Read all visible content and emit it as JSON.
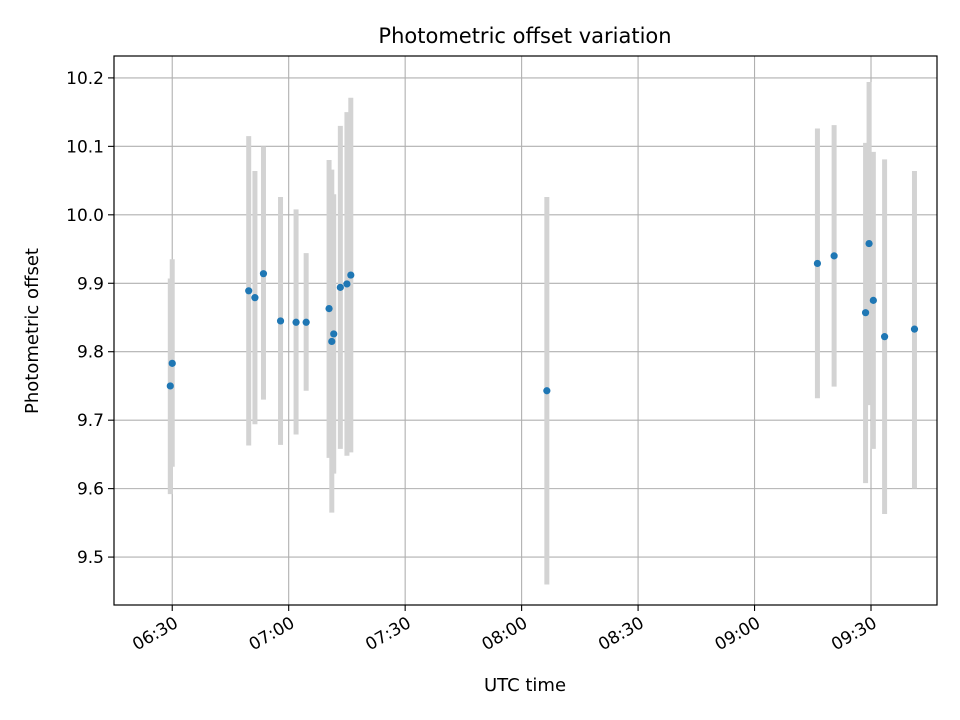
{
  "chart_data": {
    "type": "scatter",
    "title": "Photometric offset variation",
    "xlabel": "UTC time",
    "ylabel": "Photometric offset",
    "grid": true,
    "legend": "none",
    "x_unit": "minutes since 00:00 UTC",
    "xlim": [
      375,
      587
    ],
    "ylim": [
      9.43,
      10.232
    ],
    "x_ticks": [
      {
        "value": 390,
        "label": "06:30"
      },
      {
        "value": 420,
        "label": "07:00"
      },
      {
        "value": 450,
        "label": "07:30"
      },
      {
        "value": 480,
        "label": "08:00"
      },
      {
        "value": 510,
        "label": "08:30"
      },
      {
        "value": 540,
        "label": "09:00"
      },
      {
        "value": 570,
        "label": "09:30"
      }
    ],
    "y_ticks": [
      {
        "value": 9.5,
        "label": "9.5"
      },
      {
        "value": 9.6,
        "label": "9.6"
      },
      {
        "value": 9.7,
        "label": "9.7"
      },
      {
        "value": 9.8,
        "label": "9.8"
      },
      {
        "value": 9.9,
        "label": "9.9"
      },
      {
        "value": 10.0,
        "label": "10.0"
      },
      {
        "value": 10.1,
        "label": "10.1"
      },
      {
        "value": 10.2,
        "label": "10.2"
      }
    ],
    "colors": {
      "marker": "#1f77b4",
      "errorbar": "#d3d3d3",
      "grid": "#b0b0b0",
      "axes": "#000000"
    },
    "series": [
      {
        "name": "offset",
        "points": [
          {
            "x": 389.5,
            "y": 9.75,
            "err_low": 9.592,
            "err_high": 9.907
          },
          {
            "x": 390.0,
            "y": 9.783,
            "err_low": 9.632,
            "err_high": 9.935
          },
          {
            "x": 409.7,
            "y": 9.889,
            "err_low": 9.663,
            "err_high": 10.115
          },
          {
            "x": 411.3,
            "y": 9.879,
            "err_low": 9.694,
            "err_high": 10.064
          },
          {
            "x": 413.5,
            "y": 9.914,
            "err_low": 9.73,
            "err_high": 10.1
          },
          {
            "x": 417.9,
            "y": 9.845,
            "err_low": 9.664,
            "err_high": 10.026
          },
          {
            "x": 421.9,
            "y": 9.843,
            "err_low": 9.679,
            "err_high": 10.008
          },
          {
            "x": 424.5,
            "y": 9.843,
            "err_low": 9.743,
            "err_high": 9.944
          },
          {
            "x": 430.4,
            "y": 9.863,
            "err_low": 9.645,
            "err_high": 10.08
          },
          {
            "x": 431.1,
            "y": 9.815,
            "err_low": 9.565,
            "err_high": 10.066
          },
          {
            "x": 431.6,
            "y": 9.826,
            "err_low": 9.622,
            "err_high": 10.03
          },
          {
            "x": 433.3,
            "y": 9.894,
            "err_low": 9.658,
            "err_high": 10.13
          },
          {
            "x": 435.0,
            "y": 9.899,
            "err_low": 9.648,
            "err_high": 10.15
          },
          {
            "x": 436.0,
            "y": 9.912,
            "err_low": 9.653,
            "err_high": 10.171
          },
          {
            "x": 486.5,
            "y": 9.743,
            "err_low": 9.46,
            "err_high": 10.026
          },
          {
            "x": 556.2,
            "y": 9.929,
            "err_low": 9.732,
            "err_high": 10.126
          },
          {
            "x": 560.5,
            "y": 9.94,
            "err_low": 9.749,
            "err_high": 10.131
          },
          {
            "x": 568.6,
            "y": 9.857,
            "err_low": 9.608,
            "err_high": 10.105
          },
          {
            "x": 569.5,
            "y": 9.958,
            "err_low": 9.722,
            "err_high": 10.194
          },
          {
            "x": 570.6,
            "y": 9.875,
            "err_low": 9.658,
            "err_high": 10.092
          },
          {
            "x": 573.5,
            "y": 9.822,
            "err_low": 9.563,
            "err_high": 10.081
          },
          {
            "x": 581.2,
            "y": 9.833,
            "err_low": 9.6,
            "err_high": 10.064
          }
        ]
      }
    ]
  }
}
